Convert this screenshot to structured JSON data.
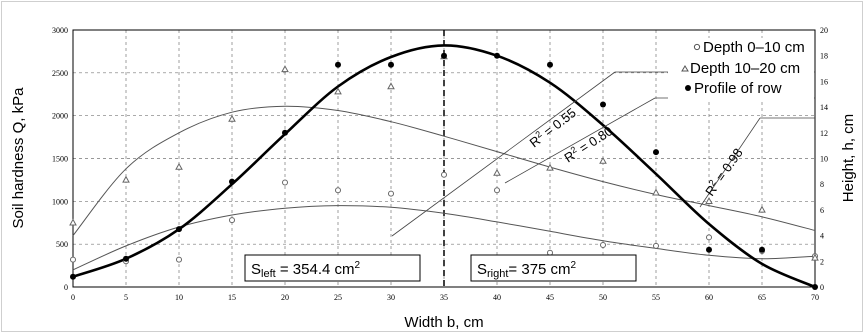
{
  "chart_data": {
    "type": "scatter",
    "title": "",
    "xlabel": "Width b, cm",
    "ylabel_left": "Soil hardness Q, kPa",
    "ylabel_right": "Height, h, cm",
    "xlim": [
      0,
      70
    ],
    "ylim_left": [
      0,
      3000
    ],
    "ylim_right": [
      0,
      20
    ],
    "x_ticks": [
      "0",
      "5",
      "10",
      "15",
      "20",
      "25",
      "30",
      "35",
      "40",
      "45",
      "50",
      "55",
      "60",
      "65",
      "70"
    ],
    "y_left_ticks": [
      "0",
      "500",
      "1000",
      "1500",
      "2000",
      "2500",
      "3000"
    ],
    "y_right_ticks": [
      "0",
      "2",
      "4",
      "6",
      "8",
      "10",
      "12",
      "14",
      "16",
      "18",
      "20"
    ],
    "grid": true,
    "legend_position": "top-right",
    "series": [
      {
        "name": "Depth 0–10 cm",
        "axis": "left",
        "marker": "open-circle",
        "x": [
          0,
          5,
          10,
          15,
          20,
          25,
          30,
          35,
          40,
          45,
          50,
          55,
          60,
          65,
          70
        ],
        "y": [
          320,
          300,
          320,
          780,
          1220,
          1130,
          1090,
          1310,
          1130,
          400,
          490,
          480,
          580,
          420,
          360
        ],
        "trend": {
          "r2_label": "R² = 0.55",
          "r2_text": "0.55",
          "x": [
            0,
            5,
            10,
            15,
            20,
            25,
            30,
            35,
            40,
            45,
            50,
            55,
            60,
            65,
            70
          ],
          "y": [
            200,
            480,
            700,
            840,
            920,
            950,
            930,
            860,
            760,
            650,
            540,
            450,
            370,
            330,
            360
          ]
        }
      },
      {
        "name": "Depth 10–20 cm",
        "axis": "left",
        "marker": "open-triangle",
        "x": [
          0,
          5,
          10,
          15,
          20,
          25,
          30,
          35,
          40,
          45,
          50,
          55,
          60,
          65,
          70
        ],
        "y": [
          750,
          1250,
          1400,
          1960,
          2540,
          2280,
          2340,
          2690,
          1330,
          1390,
          1470,
          1100,
          1000,
          900,
          340
        ],
        "trend": {
          "r2_label": "R² = 0.80",
          "r2_text": "0.80",
          "x": [
            0,
            5,
            10,
            15,
            20,
            25,
            30,
            35,
            40,
            45,
            50,
            55,
            60,
            65,
            70
          ],
          "y": [
            600,
            1380,
            1800,
            2040,
            2110,
            2060,
            1930,
            1760,
            1580,
            1400,
            1230,
            1080,
            950,
            820,
            660
          ]
        }
      },
      {
        "name": "Profile of row",
        "axis": "right",
        "marker": "filled-circle",
        "x": [
          0,
          5,
          10,
          15,
          20,
          25,
          30,
          35,
          40,
          45,
          50,
          55,
          60,
          65,
          70
        ],
        "y": [
          0.8,
          2.2,
          4.5,
          8.2,
          12.0,
          17.3,
          17.3,
          18.0,
          18.0,
          17.3,
          14.2,
          10.5,
          2.9,
          2.9,
          0
        ],
        "trend": {
          "r2_label": "R² = 0.98",
          "r2_text": "0.98",
          "x": [
            0,
            5,
            10,
            15,
            20,
            25,
            30,
            35,
            40,
            45,
            50,
            55,
            60,
            65,
            70
          ],
          "y": [
            0.8,
            2.2,
            4.5,
            8.0,
            11.9,
            15.6,
            17.9,
            18.8,
            18.0,
            15.9,
            12.6,
            8.8,
            4.9,
            1.8,
            0
          ]
        }
      }
    ],
    "divider_x": 35,
    "annotations": {
      "s_left": {
        "S": "S",
        "sub": "left",
        "value": " = 354.4 cm",
        "sup": "2"
      },
      "s_right": {
        "S": "S",
        "sub": "right",
        "value": "= 375 cm",
        "sup": "2"
      }
    }
  }
}
